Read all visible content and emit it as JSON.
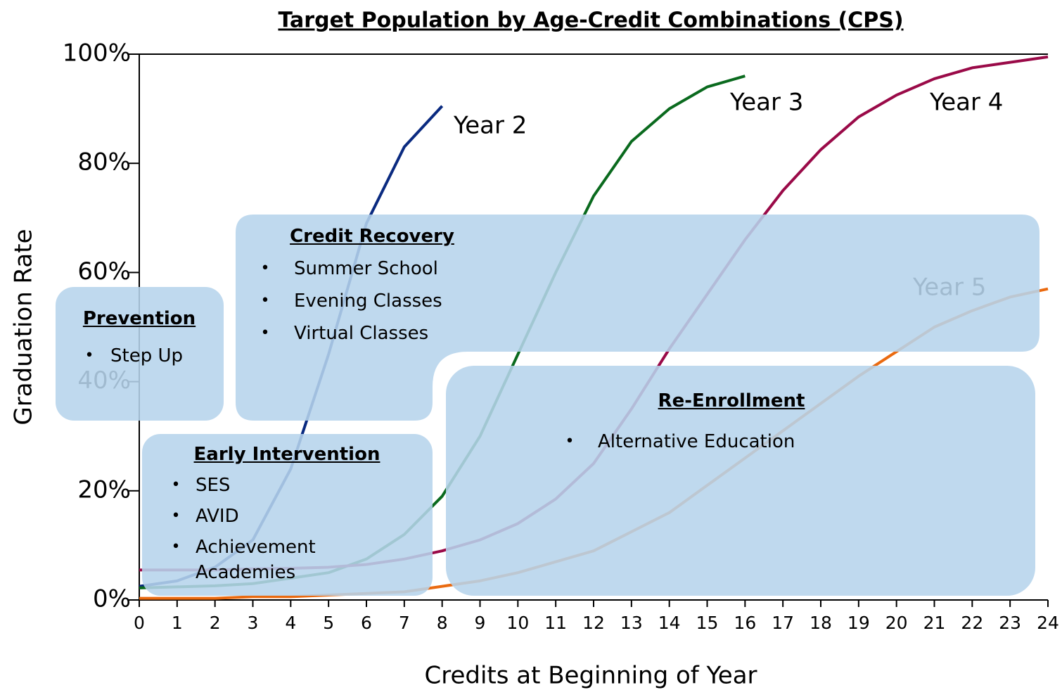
{
  "chart_data": {
    "type": "line",
    "title": "Target Population by Age-Credit Combinations (CPS)",
    "xlabel": "Credits at Beginning of Year",
    "ylabel": "Graduation Rate",
    "xlim": [
      0,
      24
    ],
    "xticks": [
      0,
      1,
      2,
      3,
      4,
      5,
      6,
      7,
      8,
      9,
      10,
      11,
      12,
      13,
      14,
      15,
      16,
      17,
      18,
      19,
      20,
      21,
      22,
      23,
      24
    ],
    "ylim": [
      0,
      100
    ],
    "yticks": [
      {
        "value": 0,
        "label": "0%"
      },
      {
        "value": 20,
        "label": "20%"
      },
      {
        "value": 40,
        "label": "40%"
      },
      {
        "value": 60,
        "label": "60%"
      },
      {
        "value": 80,
        "label": "80%"
      },
      {
        "value": 100,
        "label": "100%"
      }
    ],
    "series": [
      {
        "name": "Year 2",
        "color": "#0a2a80",
        "x": [
          0,
          1,
          2,
          3,
          4,
          5,
          6,
          7,
          8
        ],
        "values": [
          2.5,
          3.5,
          6,
          11,
          24,
          45,
          69,
          83,
          90.5
        ]
      },
      {
        "name": "Year 3",
        "color": "#0a6a1e",
        "x": [
          0,
          1,
          2,
          3,
          4,
          5,
          6,
          7,
          8,
          9,
          10,
          11,
          12,
          13,
          14,
          15,
          16
        ],
        "values": [
          2.2,
          2.4,
          2.6,
          3,
          4,
          5,
          7.5,
          12,
          19,
          30,
          45,
          60,
          74,
          84,
          90,
          94,
          96
        ]
      },
      {
        "name": "Year 4",
        "color": "#9a0a48",
        "x": [
          0,
          1,
          2,
          3,
          4,
          5,
          6,
          7,
          8,
          9,
          10,
          11,
          12,
          13,
          14,
          15,
          16,
          17,
          18,
          19,
          20,
          21,
          22,
          23,
          24
        ],
        "values": [
          5.5,
          5.5,
          5.5,
          5.7,
          5.8,
          6,
          6.5,
          7.5,
          9,
          11,
          14,
          18.5,
          25,
          35,
          46,
          56,
          66,
          75,
          82.5,
          88.5,
          92.5,
          95.5,
          97.5,
          98.5,
          99.5
        ]
      },
      {
        "name": "Year 5",
        "color": "#ea6a10",
        "x": [
          0,
          1,
          2,
          3,
          4,
          5,
          6,
          7,
          8,
          9,
          10,
          11,
          12,
          13,
          14,
          15,
          16,
          17,
          18,
          19,
          20,
          21,
          22,
          23,
          24
        ],
        "values": [
          0.3,
          0.3,
          0.3,
          0.6,
          0.6,
          0.9,
          1.2,
          1.5,
          2.5,
          3.5,
          5,
          7,
          9,
          12.5,
          16,
          21,
          26,
          31,
          36,
          41,
          45.5,
          50,
          53,
          55.5,
          57
        ]
      }
    ],
    "annotations": [
      {
        "title": "Prevention",
        "items": [
          "Step Up"
        ]
      },
      {
        "title": "Credit Recovery",
        "items": [
          "Summer School",
          "Evening Classes",
          "Virtual Classes"
        ]
      },
      {
        "title": "Early Intervention",
        "items": [
          "SES",
          "AVID",
          "Achievement Academies"
        ]
      },
      {
        "title": "Re-Enrollment",
        "items": [
          "Alternative Education"
        ]
      }
    ]
  }
}
